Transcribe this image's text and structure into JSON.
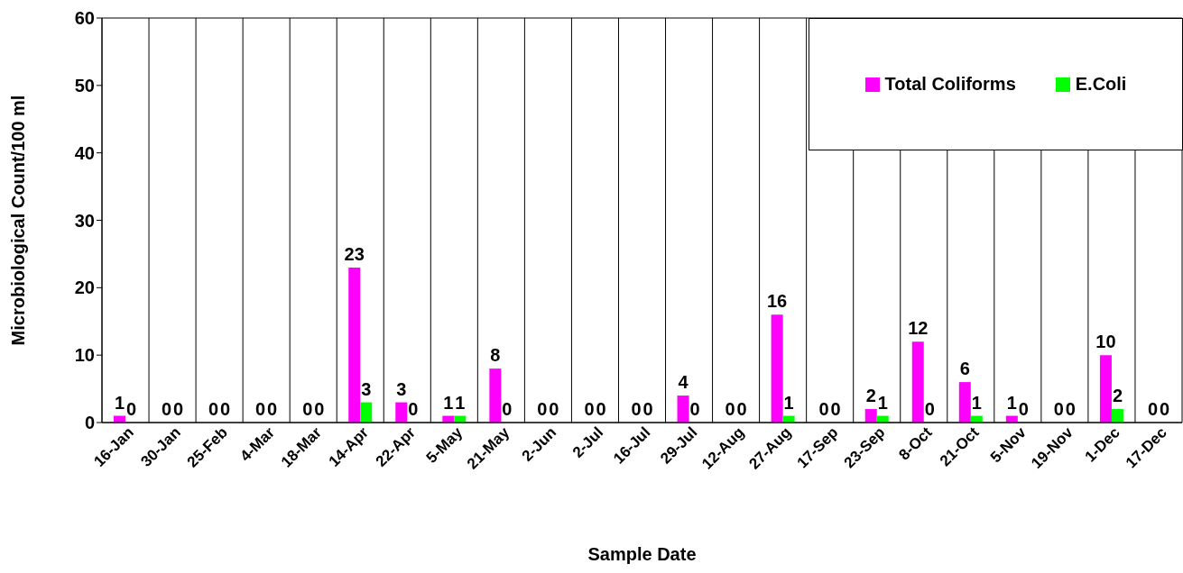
{
  "chart_data": {
    "type": "bar",
    "xlabel": "Sample Date",
    "ylabel": "Microbiological Count/100 ml",
    "categories": [
      "16-Jan",
      "30-Jan",
      "25-Feb",
      "4-Mar",
      "18-Mar",
      "14-Apr",
      "22-Apr",
      "5-May",
      "21-May",
      "2-Jun",
      "2-Jul",
      "16-Jul",
      "29-Jul",
      "12-Aug",
      "27-Aug",
      "17-Sep",
      "23-Sep",
      "8-Oct",
      "21-Oct",
      "5-Nov",
      "19-Nov",
      "1-Dec",
      "17-Dec"
    ],
    "series": [
      {
        "name": "Total Coliforms",
        "color": "#ff00ff",
        "values": [
          1,
          0,
          0,
          0,
          0,
          23,
          3,
          1,
          8,
          0,
          0,
          0,
          4,
          0,
          16,
          0,
          2,
          12,
          6,
          1,
          0,
          10,
          0
        ]
      },
      {
        "name": "E.Coli",
        "color": "#00ff00",
        "values": [
          0,
          0,
          0,
          0,
          0,
          3,
          0,
          1,
          0,
          0,
          0,
          0,
          0,
          0,
          1,
          0,
          1,
          0,
          1,
          0,
          0,
          2,
          0
        ]
      }
    ],
    "ylim": [
      0,
      60
    ],
    "yticks": [
      0,
      10,
      20,
      30,
      40,
      50,
      60
    ],
    "grid": true,
    "legend": "top right",
    "data_labels": true
  }
}
